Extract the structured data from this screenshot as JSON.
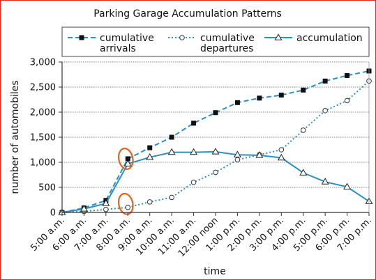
{
  "chart_data": {
    "type": "line",
    "title": "Parking Garage Accumulation Patterns",
    "xlabel": "time",
    "ylabel": "number of automobiles",
    "categories": [
      "5:00 a.m.",
      "6:00 a.m.",
      "7:00 a.m.",
      "8:00 a.m.",
      "9:00 a.m.",
      "10:00 a.m.",
      "11:00 a.m.",
      "12:00 noon",
      "1:00 p.m.",
      "2:00 p.m.",
      "3:00 p.m.",
      "4:00 p.m.",
      "5:00 p.m.",
      "6:00 p.m.",
      "7:00 p.m."
    ],
    "ylim": [
      0,
      3000
    ],
    "yticks": [
      "0",
      "500",
      "1,000",
      "1,500",
      "2,000",
      "2,500",
      "3,000"
    ],
    "ytick_values": [
      0,
      500,
      1000,
      1500,
      2000,
      2500,
      3000
    ],
    "grid": "horizontal",
    "legend_position": "top",
    "series": [
      {
        "name": "cumulative arrivals",
        "name_lines": [
          "cumulative",
          "arrivals"
        ],
        "marker": "filled-square",
        "line_style": "dashed",
        "color": "#2b8fc4",
        "values": [
          0,
          90,
          240,
          1070,
          1290,
          1500,
          1780,
          1990,
          2190,
          2280,
          2340,
          2440,
          2620,
          2730,
          2820
        ]
      },
      {
        "name": "cumulative departures",
        "name_lines": [
          "cumulative",
          "departures"
        ],
        "marker": "open-circle",
        "line_style": "dotted",
        "color": "#2b8fc4",
        "values": [
          0,
          20,
          60,
          100,
          210,
          300,
          600,
          800,
          1050,
          1150,
          1250,
          1640,
          2030,
          2230,
          2620
        ]
      },
      {
        "name": "accumulation",
        "name_lines": [
          "accumulation"
        ],
        "marker": "open-triangle",
        "line_style": "solid",
        "color": "#2b8fc4",
        "values": [
          0,
          70,
          180,
          970,
          1100,
          1200,
          1200,
          1210,
          1150,
          1140,
          1090,
          790,
          610,
          510,
          220
        ]
      }
    ],
    "annotations": [
      {
        "type": "circle",
        "color": "#e8621a",
        "category": "8:00 a.m.",
        "value": 1000
      },
      {
        "type": "circle",
        "color": "#e8621a",
        "category": "8:00 a.m.",
        "value": 100
      }
    ]
  }
}
